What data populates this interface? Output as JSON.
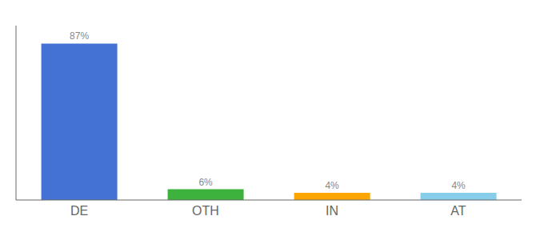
{
  "chart_data": {
    "type": "bar",
    "categories": [
      "DE",
      "OTH",
      "IN",
      "AT"
    ],
    "values": [
      87,
      6,
      4,
      4
    ],
    "value_labels": [
      "87%",
      "6%",
      "4%",
      "4%"
    ],
    "colors": [
      "#4472D4",
      "#3DB33D",
      "#FFA500",
      "#87CEEB"
    ],
    "ylim": [
      0,
      97
    ],
    "grid": false,
    "data_labels": true,
    "tick_labels": "x"
  }
}
